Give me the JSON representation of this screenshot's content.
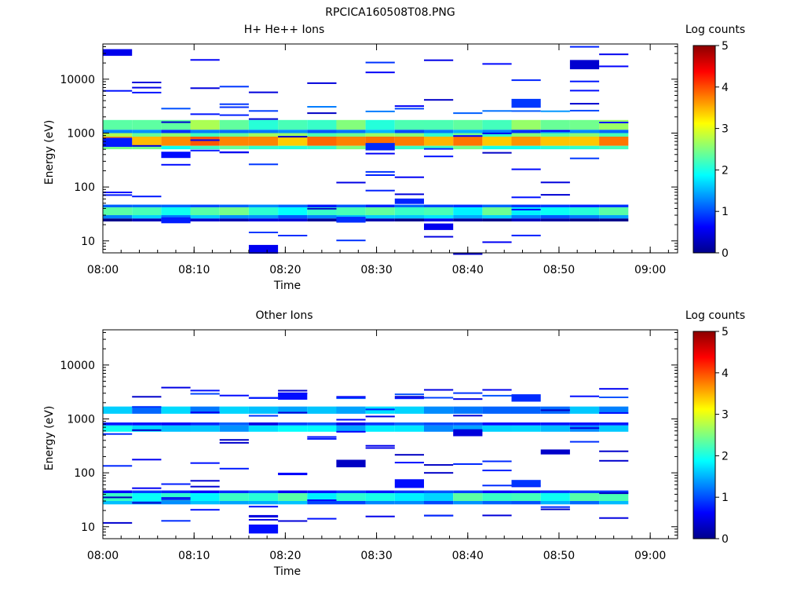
{
  "figure_title": "RPCICA160508T08.PNG",
  "colors": {
    "background": "#ffffff",
    "axis": "#000000",
    "colormap_stops": [
      "#00008b",
      "#0000ff",
      "#00ffff",
      "#ffff00",
      "#ff0000",
      "#8b0000"
    ]
  },
  "chart_data": [
    {
      "type": "heatmap",
      "title": "H+ He++ Ions",
      "xlabel": "Time",
      "ylabel": "Energy (eV)",
      "x_ticks": [
        "08:00",
        "08:10",
        "08:20",
        "08:30",
        "08:40",
        "08:50",
        "09:00"
      ],
      "x_range": [
        "08:00",
        "09:03"
      ],
      "y_scale": "log",
      "y_range": [
        6,
        45000
      ],
      "y_ticks": [
        "10",
        "100",
        "1000",
        "10000"
      ],
      "colorbar": {
        "label": "Log counts",
        "range": [
          0,
          5
        ],
        "ticks": [
          "0",
          "1",
          "2",
          "3",
          "4",
          "5"
        ]
      },
      "time_bin_minutes": 3.2,
      "bands": [
        {
          "e_min": 580,
          "e_max": 860,
          "value": 3.6,
          "note": "dominant orange band"
        },
        {
          "e_min": 500,
          "e_max": 580,
          "value": 2.2
        },
        {
          "e_min": 860,
          "e_max": 1000,
          "value": 2.4
        },
        {
          "e_min": 1150,
          "e_max": 1750,
          "value": 2.4
        },
        {
          "e_min": 1000,
          "e_max": 1150,
          "value": 1.2
        },
        {
          "e_min": 30,
          "e_max": 42,
          "value": 2.1
        },
        {
          "e_min": 26,
          "e_max": 30,
          "value": 1.4
        },
        {
          "e_min": 42,
          "e_max": 47,
          "value": 1.0
        },
        {
          "e_min": 23,
          "e_max": 26,
          "value": 0.2
        },
        {
          "e_min": 2400,
          "e_max": 3200,
          "value": 0.8,
          "note": "sparse"
        },
        {
          "e_min": 5,
          "e_max": 45000,
          "value": 0.3,
          "note": "scattered low-count pixels"
        }
      ]
    },
    {
      "type": "heatmap",
      "title": "Other Ions",
      "xlabel": "Time",
      "ylabel": "Energy (eV)",
      "x_ticks": [
        "08:00",
        "08:10",
        "08:20",
        "08:30",
        "08:40",
        "08:50",
        "09:00"
      ],
      "x_range": [
        "08:00",
        "09:03"
      ],
      "y_scale": "log",
      "y_range": [
        6,
        45000
      ],
      "y_ticks": [
        "10",
        "100",
        "1000",
        "10000"
      ],
      "colorbar": {
        "label": "Log counts",
        "range": [
          0,
          5
        ],
        "ticks": [
          "0",
          "1",
          "2",
          "3",
          "4",
          "5"
        ]
      },
      "time_bin_minutes": 3.2,
      "bands": [
        {
          "e_min": 580,
          "e_max": 760,
          "value": 1.6
        },
        {
          "e_min": 760,
          "e_max": 860,
          "value": 0.8
        },
        {
          "e_min": 1250,
          "e_max": 1700,
          "value": 1.4
        },
        {
          "e_min": 30,
          "e_max": 42,
          "value": 2.0
        },
        {
          "e_min": 26,
          "e_max": 30,
          "value": 1.3
        },
        {
          "e_min": 42,
          "e_max": 47,
          "value": 0.9
        },
        {
          "e_min": 2500,
          "e_max": 3100,
          "value": 0.6,
          "note": "sparse"
        },
        {
          "e_min": 10,
          "e_max": 4500,
          "value": 0.3,
          "note": "scattered low-count pixels"
        }
      ]
    }
  ]
}
